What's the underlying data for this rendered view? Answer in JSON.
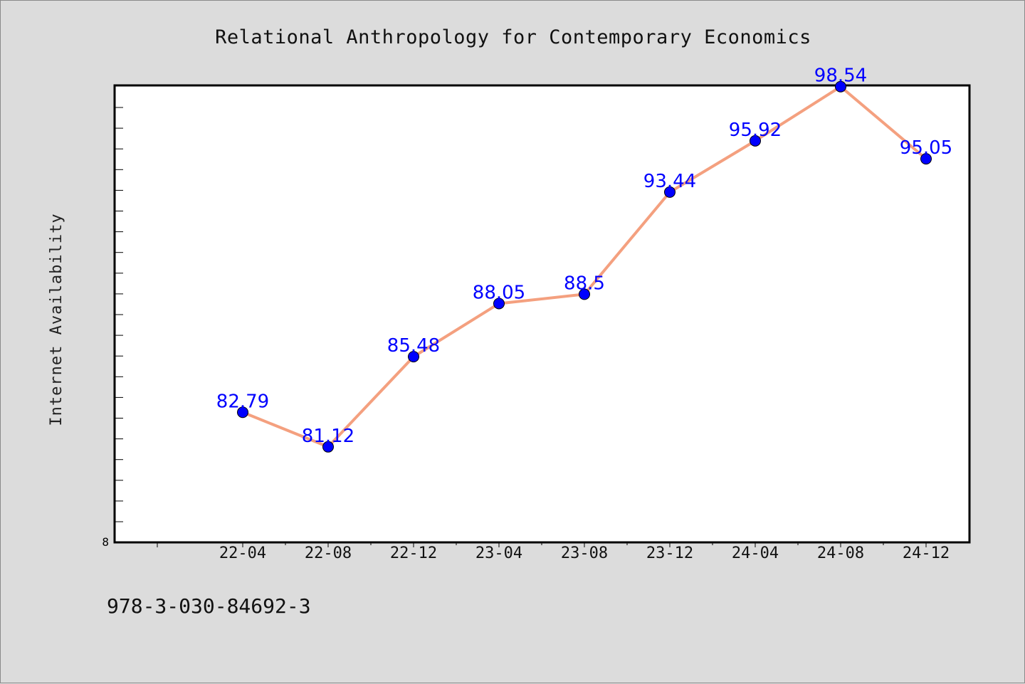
{
  "chart_data": {
    "type": "line",
    "title": "Relational Anthropology for Contemporary Economics",
    "xlabel": "",
    "ylabel": "Internet Availability",
    "categories": [
      "22-04",
      "22-08",
      "22-12",
      "23-04",
      "23-08",
      "23-12",
      "24-04",
      "24-08",
      "24-12"
    ],
    "series": [
      {
        "values": [
          82.79,
          81.12,
          85.48,
          88.05,
          88.5,
          93.44,
          95.92,
          98.54,
          95.05
        ],
        "data_labels": [
          "82.79",
          "81.12",
          "85.48",
          "88.05",
          "88.5",
          "93.44",
          "95.92",
          "98.54",
          "95.05"
        ]
      }
    ],
    "ylim": [
      76.5,
      98.6
    ],
    "ytick_label": "8",
    "grid": false,
    "colors": {
      "line": "#f4a07f",
      "marker": "#0000ff",
      "label": "#0000ff",
      "plot_bg": "#ffffff",
      "page_bg": "#dcdcdc"
    }
  },
  "footer": {
    "isbn": "978-3-030-84692-3"
  }
}
